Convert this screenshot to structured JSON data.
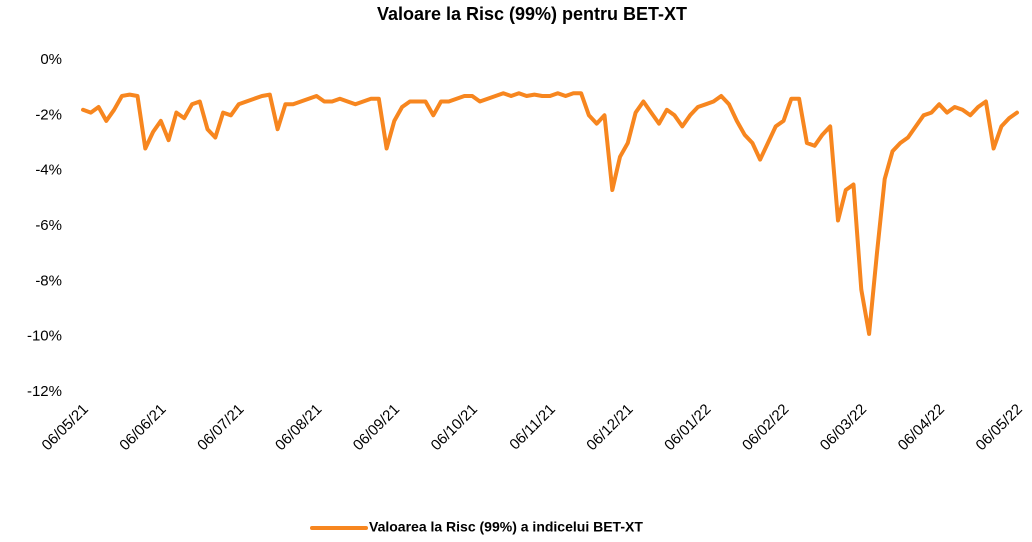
{
  "chart_data": {
    "type": "line",
    "title": "Valoare la Risc (99%) pentru BET-XT",
    "categories": [
      "06/05/21",
      null,
      null,
      null,
      null,
      null,
      null,
      null,
      null,
      null,
      "06/06/21",
      null,
      null,
      null,
      null,
      null,
      null,
      null,
      null,
      null,
      "06/07/21",
      null,
      null,
      null,
      null,
      null,
      null,
      null,
      null,
      null,
      "06/08/21",
      null,
      null,
      null,
      null,
      null,
      null,
      null,
      null,
      null,
      "06/09/21",
      null,
      null,
      null,
      null,
      null,
      null,
      null,
      null,
      null,
      "06/10/21",
      null,
      null,
      null,
      null,
      null,
      null,
      null,
      null,
      null,
      "06/11/21",
      null,
      null,
      null,
      null,
      null,
      null,
      null,
      null,
      null,
      "06/12/21",
      null,
      null,
      null,
      null,
      null,
      null,
      null,
      null,
      null,
      "06/01/22",
      null,
      null,
      null,
      null,
      null,
      null,
      null,
      null,
      null,
      "06/02/22",
      null,
      null,
      null,
      null,
      null,
      null,
      null,
      null,
      null,
      "06/03/22",
      null,
      null,
      null,
      null,
      null,
      null,
      null,
      null,
      null,
      "06/04/22",
      null,
      null,
      null,
      null,
      null,
      null,
      null,
      null,
      null,
      "06/05/22"
    ],
    "series": [
      {
        "name": "Valoarea la Risc (99%) a indicelui BET-XT",
        "color": "#f7861f",
        "values": [
          -1.8,
          -1.9,
          -1.7,
          -2.2,
          -1.8,
          -1.3,
          -1.25,
          -1.3,
          -3.2,
          -2.6,
          -2.2,
          -2.9,
          -1.9,
          -2.1,
          -1.6,
          -1.5,
          -2.5,
          -2.8,
          -1.9,
          -2.0,
          -1.6,
          -1.5,
          -1.4,
          -1.3,
          -1.25,
          -2.5,
          -1.6,
          -1.6,
          -1.5,
          -1.4,
          -1.3,
          -1.5,
          -1.5,
          -1.4,
          -1.5,
          -1.6,
          -1.5,
          -1.4,
          -1.4,
          -3.2,
          -2.2,
          -1.7,
          -1.5,
          -1.5,
          -1.5,
          -2.0,
          -1.5,
          -1.5,
          -1.4,
          -1.3,
          -1.3,
          -1.5,
          -1.4,
          -1.3,
          -1.2,
          -1.3,
          -1.2,
          -1.3,
          -1.25,
          -1.3,
          -1.3,
          -1.2,
          -1.3,
          -1.2,
          -1.2,
          -2.0,
          -2.3,
          -2.0,
          -4.7,
          -3.5,
          -3.0,
          -1.9,
          -1.5,
          -1.9,
          -2.3,
          -1.8,
          -2.0,
          -2.4,
          -2.0,
          -1.7,
          -1.6,
          -1.5,
          -1.3,
          -1.6,
          -2.2,
          -2.7,
          -3.0,
          -3.6,
          -3.0,
          -2.4,
          -2.2,
          -1.4,
          -1.4,
          -3.0,
          -3.1,
          -2.7,
          -2.4,
          -5.8,
          -4.7,
          -4.5,
          -8.3,
          -9.9,
          -7.0,
          -4.3,
          -3.3,
          -3.0,
          -2.8,
          -2.4,
          -2.0,
          -1.9,
          -1.6,
          -1.9,
          -1.7,
          -1.8,
          -2.0,
          -1.7,
          -1.5,
          -3.2,
          -2.4,
          -2.1,
          -1.9
        ]
      }
    ],
    "ylim": [
      -12,
      0
    ],
    "yticks": [
      {
        "value": 0,
        "label": "0%"
      },
      {
        "value": -2,
        "label": "-2%"
      },
      {
        "value": -4,
        "label": "-4%"
      },
      {
        "value": -6,
        "label": "-6%"
      },
      {
        "value": -8,
        "label": "-8%"
      },
      {
        "value": -10,
        "label": "-10%"
      },
      {
        "value": -12,
        "label": "-12%"
      }
    ],
    "grid": false,
    "legend": "bottom"
  }
}
